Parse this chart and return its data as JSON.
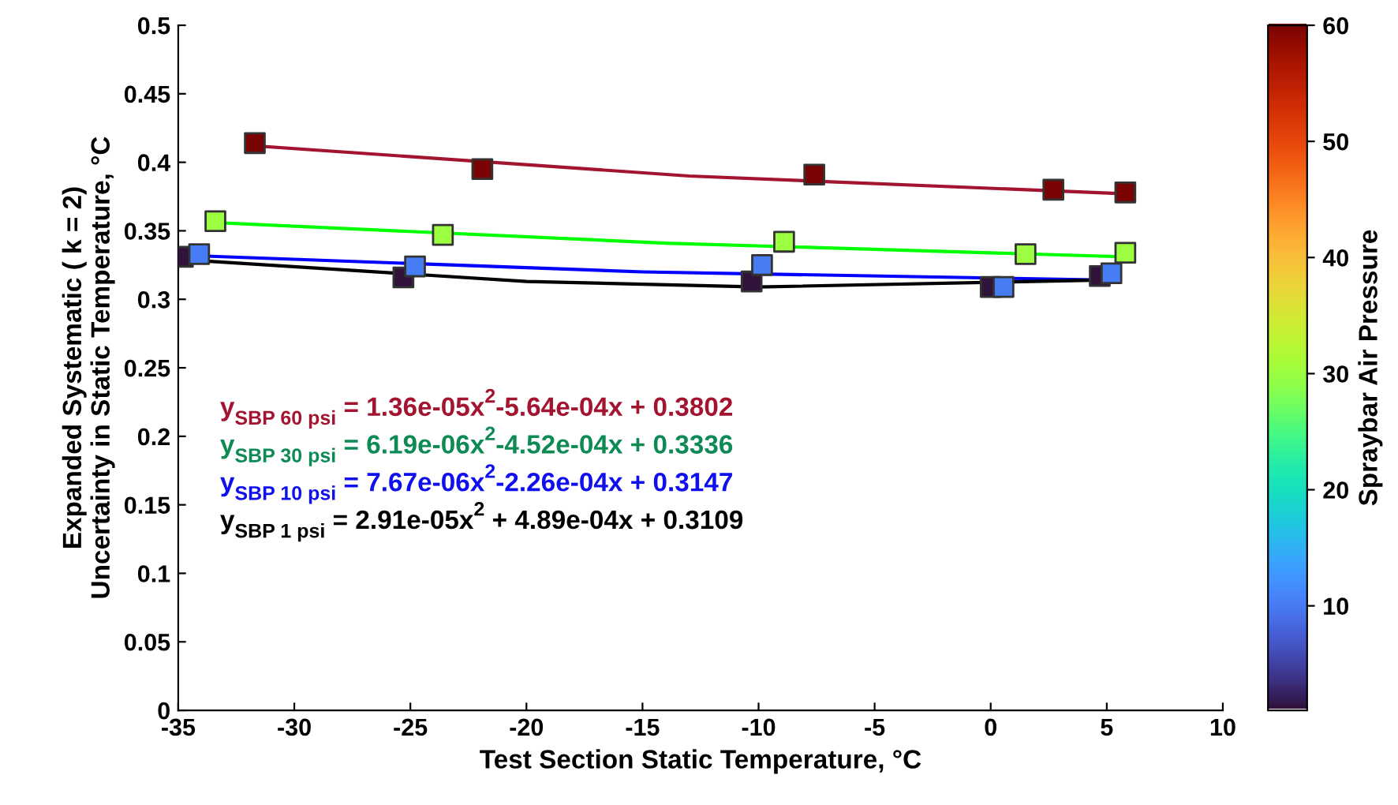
{
  "chart_data": {
    "type": "scatter",
    "xlabel": "Test Section Static Temperature, °C",
    "ylabel": "Expanded Systematic ( k = 2)\nUncertainty in Static Temperature, °C",
    "clabel": "Spraybar Air Pressure",
    "xlim": [
      -35,
      10
    ],
    "xticks": [
      -35,
      -30,
      -25,
      -20,
      -15,
      -10,
      -5,
      0,
      5,
      10
    ],
    "ylim": [
      0,
      0.5
    ],
    "yticks": [
      0,
      0.05,
      0.1,
      0.15,
      0.2,
      0.25,
      0.3,
      0.35,
      0.4,
      0.45,
      0.5
    ],
    "clim": [
      1,
      60
    ],
    "cticks": [
      10,
      20,
      30,
      40,
      50,
      60
    ],
    "marker": "square",
    "grid": false,
    "legend": false,
    "series": [
      {
        "type": "line",
        "marker": "none",
        "color": "#a2142f",
        "x": [
          -31.7,
          -13,
          5.8
        ],
        "values": [
          0.412,
          0.39,
          0.377
        ]
      },
      {
        "type": "line",
        "marker": "none",
        "color": "#00ff00",
        "x": [
          -33.4,
          -14,
          5.8
        ],
        "values": [
          0.356,
          0.341,
          0.331
        ]
      },
      {
        "type": "line",
        "marker": "none",
        "color": "#0000ff",
        "x": [
          -34.6,
          -15,
          5.3
        ],
        "values": [
          0.332,
          0.32,
          0.314
        ]
      },
      {
        "type": "line",
        "marker": "none",
        "color": "#000000",
        "x": [
          -34.8,
          -20,
          -10,
          4.7
        ],
        "values": [
          0.329,
          0.313,
          0.309,
          0.314
        ]
      },
      {
        "type": "scatter",
        "x": [
          -31.7,
          -21.9,
          -7.6,
          2.7,
          5.8
        ],
        "values": [
          0.414,
          0.395,
          0.391,
          0.38,
          0.378
        ],
        "cvalues": [
          60,
          60,
          60,
          60,
          60
        ]
      },
      {
        "type": "scatter",
        "x": [
          -33.4,
          -23.6,
          -8.9,
          1.5,
          5.8
        ],
        "values": [
          0.357,
          0.347,
          0.342,
          0.333,
          0.334
        ],
        "cvalues": [
          30,
          30,
          30,
          30,
          30
        ]
      },
      {
        "type": "scatter",
        "x": [
          -34.8,
          -25.3,
          -10.3,
          0.0,
          4.7
        ],
        "values": [
          0.331,
          0.316,
          0.313,
          0.309,
          0.317
        ],
        "cvalues": [
          1,
          1,
          1,
          1,
          1
        ]
      },
      {
        "type": "scatter",
        "x": [
          -34.1,
          -24.8,
          -9.85,
          0.55,
          5.2
        ],
        "values": [
          0.333,
          0.324,
          0.325,
          0.309,
          0.319
        ],
        "cvalues": [
          10,
          10,
          10,
          10,
          10
        ]
      }
    ],
    "annotations": [
      "y$_{SBP 60 psi}$ = 1.36e-05x$^{2}$-5.64e-04x + 0.3802",
      "y$_{SBP 30 psi}$ = 6.19e-06x$^{2}$-4.52e-04x + 0.3336",
      "y$_{SBP 10 psi}$ = 7.67e-06x$^{2}$-2.26e-04x + 0.3147",
      "y$_{SBP 1 psi}$ = 2.91e-05x$^{2}$ + 4.89e-04x + 0.3109"
    ]
  }
}
